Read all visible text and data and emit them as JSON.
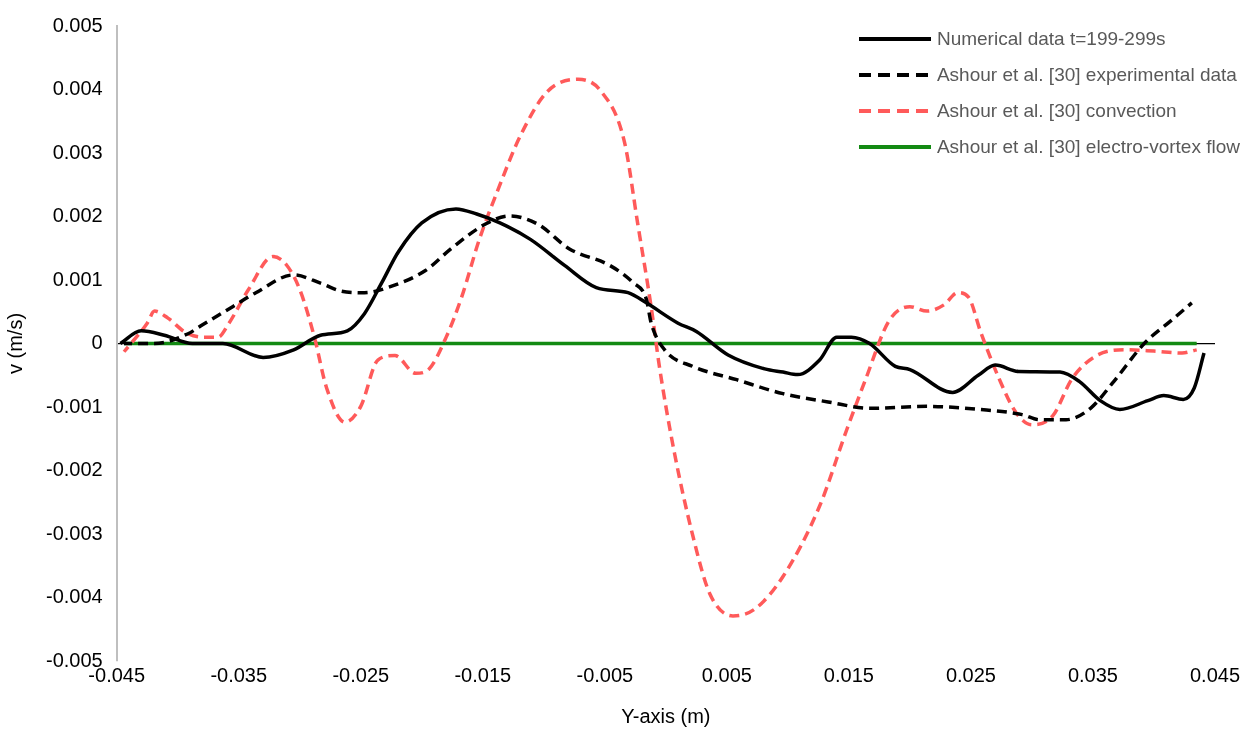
{
  "chart_data": {
    "type": "line",
    "xlabel": "Y-axis (m)",
    "ylabel": "v (m/s)",
    "xlim": [
      -0.045,
      0.045
    ],
    "xticks": [
      -0.045,
      -0.035,
      -0.025,
      -0.015,
      -0.005,
      0.005,
      0.015,
      0.025,
      0.035,
      0.045
    ],
    "ylim": [
      -0.005,
      0.005
    ],
    "yticks": [
      -0.005,
      -0.004,
      -0.003,
      -0.002,
      -0.001,
      0,
      0.001,
      0.002,
      0.003,
      0.004,
      0.005
    ],
    "grid": false,
    "legend": "top right",
    "marker": "none",
    "series": [
      {
        "name": "Numerical data t=199-299s",
        "color": "#000000",
        "line_style": "solid",
        "x": [
          -0.0447,
          -0.043,
          -0.0411,
          -0.0388,
          -0.0363,
          -0.033,
          -0.0305,
          -0.0283,
          -0.0261,
          -0.0247,
          -0.0233,
          -0.0219,
          -0.02,
          -0.0172,
          -0.0155,
          -0.0136,
          -0.0111,
          -0.0083,
          -0.0057,
          -0.0031,
          -0.0016,
          0.001,
          0.0025,
          0.0051,
          0.0081,
          0.0096,
          0.0108,
          0.0126,
          0.014,
          0.0152,
          0.0167,
          0.0188,
          0.02,
          0.0235,
          0.0256,
          0.027,
          0.0289,
          0.0323,
          0.0339,
          0.0356,
          0.0372,
          0.0395,
          0.0408,
          0.0424,
          0.0433,
          0.0441
        ],
        "values": [
          0,
          0.0002,
          0.00013,
          0,
          0,
          -0.00022,
          -0.0001,
          0.00013,
          0.0002,
          0.00047,
          0.00095,
          0.00145,
          0.0019,
          0.00212,
          0.00204,
          0.0019,
          0.00164,
          0.00123,
          0.00088,
          0.0008,
          0.00064,
          0.00032,
          0.00019,
          -0.00018,
          -0.0004,
          -0.00045,
          -0.00049,
          -0.00026,
          0.0001,
          0.0001,
          0,
          -0.00036,
          -0.00041,
          -0.00077,
          -0.0005,
          -0.00034,
          -0.00044,
          -0.00045,
          -0.0006,
          -0.0009,
          -0.00104,
          -0.0009,
          -0.00082,
          -0.00088,
          -0.0007,
          -0.00015
        ]
      },
      {
        "name": "Ashour et al. [30] experimental data",
        "color": "#000000",
        "line_style": "dashed",
        "x": [
          -0.0444,
          -0.0419,
          -0.0392,
          -0.038,
          -0.0355,
          -0.0336,
          -0.0305,
          -0.0283,
          -0.0267,
          -0.0247,
          -0.0228,
          -0.0197,
          -0.0175,
          -0.0147,
          -0.0128,
          -0.0105,
          -0.0079,
          -0.0046,
          -0.0027,
          -0.0016,
          -0.0012,
          -0.0001,
          0.0022,
          0.0058,
          0.0096,
          0.0133,
          0.0167,
          0.0214,
          0.0258,
          0.0292,
          0.0306,
          0.0328,
          0.0348,
          0.0367,
          0.0392,
          0.0414,
          0.0431
        ],
        "values": [
          0,
          0,
          0.00015,
          0.00029,
          0.00058,
          0.0008,
          0.00108,
          0.00095,
          0.00083,
          0.0008,
          0.00088,
          0.00115,
          0.00151,
          0.00189,
          0.00201,
          0.00188,
          0.00149,
          0.00123,
          0.00096,
          0.0007,
          0.00032,
          -0.0001,
          -0.00036,
          -0.00057,
          -0.00079,
          -0.00092,
          -0.00102,
          -0.00099,
          -0.00104,
          -0.00112,
          -0.0012,
          -0.0012,
          -0.00102,
          -0.0006,
          0,
          0.00036,
          0.00064
        ]
      },
      {
        "name": "Ashour et al. [30] convection",
        "color": "#ff5a5a",
        "line_style": "dashed",
        "x": [
          -0.0444,
          -0.0425,
          -0.0419,
          -0.0408,
          -0.0394,
          -0.038,
          -0.0367,
          -0.0358,
          -0.0342,
          -0.0322,
          -0.0311,
          -0.03,
          -0.0288,
          -0.0278,
          -0.0263,
          -0.025,
          -0.0236,
          -0.0222,
          -0.0205,
          -0.0194,
          -0.018,
          -0.0167,
          -0.0153,
          -0.0138,
          -0.0119,
          -0.0097,
          -0.0072,
          -0.0053,
          -0.0034,
          -0.0023,
          -0.0012,
          -0.0005,
          0.0007,
          0.0022,
          0.0036,
          0.0055,
          0.0073,
          0.0096,
          0.0126,
          0.0148,
          0.0163,
          0.0183,
          0.02,
          0.0214,
          0.0228,
          0.0239,
          0.0248,
          0.0258,
          0.0273,
          0.0287,
          0.03,
          0.0317,
          0.0333,
          0.0353,
          0.0378,
          0.04,
          0.0423,
          0.0435
        ],
        "values": [
          -0.00013,
          0.00032,
          0.00051,
          0.0004,
          0.00018,
          0.0001,
          0.0001,
          0.00032,
          0.00085,
          0.00137,
          0.00124,
          0.00085,
          0.0001,
          -0.0007,
          -0.00124,
          -0.00099,
          -0.00026,
          -0.00019,
          -0.00047,
          -0.0004,
          0.0001,
          0.00075,
          0.00163,
          0.0024,
          0.00328,
          0.00397,
          0.00416,
          0.00397,
          0.00318,
          0.00188,
          0.00057,
          -0.0004,
          -0.00172,
          -0.00302,
          -0.00394,
          -0.00429,
          -0.00418,
          -0.00367,
          -0.00256,
          -0.00137,
          -0.0006,
          0.00036,
          0.00058,
          0.00051,
          0.00061,
          0.0008,
          0.00073,
          0.00018,
          -0.00055,
          -0.00109,
          -0.00128,
          -0.00114,
          -0.00055,
          -0.00019,
          -0.0001,
          -0.00012,
          -0.00015,
          -0.0001
        ]
      },
      {
        "name": "Ashour et al. [30] electro-vortex flow",
        "color": "#138a13",
        "line_style": "solid",
        "x": [
          -0.0444,
          -0.004,
          0.001,
          0.0435
        ],
        "values": [
          0,
          0,
          0,
          0
        ]
      }
    ]
  }
}
